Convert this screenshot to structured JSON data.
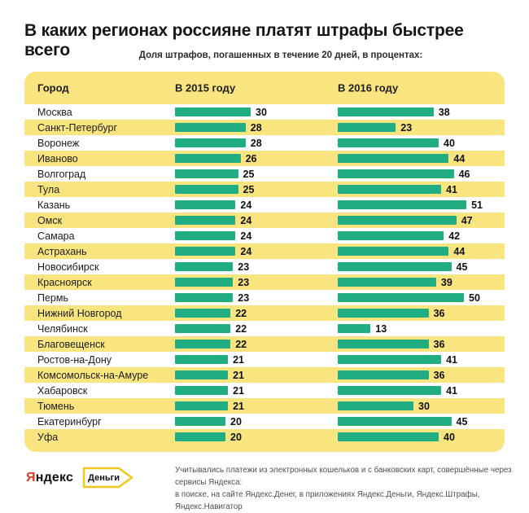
{
  "title": "В каких регионах россияне платят штрафы быстрее всего",
  "subtitle": "Доля штрафов, погашенных в течение 20 дней, в процентах:",
  "table": {
    "columns": [
      "Город",
      "В 2015 году",
      "В 2016 году"
    ]
  },
  "chart_data": {
    "type": "bar",
    "orientation": "horizontal",
    "title": "В каких регионах россияне платят штрафы быстрее всего",
    "subtitle": "Доля штрафов, погашенных в течение 20 дней, в процентах:",
    "value_unit": "percent",
    "xlim": [
      0,
      55
    ],
    "grid": false,
    "legend_position": "column headers",
    "categories": [
      "Москва",
      "Санкт-Петербург",
      "Воронеж",
      "Иваново",
      "Волгоград",
      "Тула",
      "Казань",
      "Омск",
      "Самара",
      "Астрахань",
      "Новосибирск",
      "Красноярск",
      "Пермь",
      "Нижний Новгород",
      "Челябинск",
      "Благовещенск",
      "Ростов-на-Дону",
      "Комсомольск-на-Амуре",
      "Хабаровск",
      "Тюмень",
      "Екатеринбург",
      "Уфа"
    ],
    "series": [
      {
        "name": "В 2015 году",
        "values": [
          30,
          28,
          28,
          26,
          25,
          25,
          24,
          24,
          24,
          24,
          23,
          23,
          23,
          22,
          22,
          22,
          21,
          21,
          21,
          21,
          20,
          20
        ]
      },
      {
        "name": "В 2016 году",
        "values": [
          38,
          23,
          40,
          44,
          46,
          41,
          51,
          47,
          42,
          44,
          45,
          39,
          50,
          36,
          13,
          36,
          41,
          36,
          41,
          30,
          45,
          40
        ]
      }
    ]
  },
  "footer": {
    "logo_first_letter": "Я",
    "logo_rest": "ндекс",
    "logo_tag": "Деньги",
    "note_line1": "Учитывались платежи из электронных кошельков и с банковских карт, совершённые через сервисы Яндекса:",
    "note_line2": "в поиске, на сайте Яндекс.Денег, в приложениях Яндекс.Деньги, Яндекс.Штрафы, Яндекс.Навигатор"
  },
  "colors": {
    "bar": "#21ad82",
    "stripe": "#f8e580",
    "logo_red": "#e43a21",
    "tag_border": "#f4c620"
  }
}
